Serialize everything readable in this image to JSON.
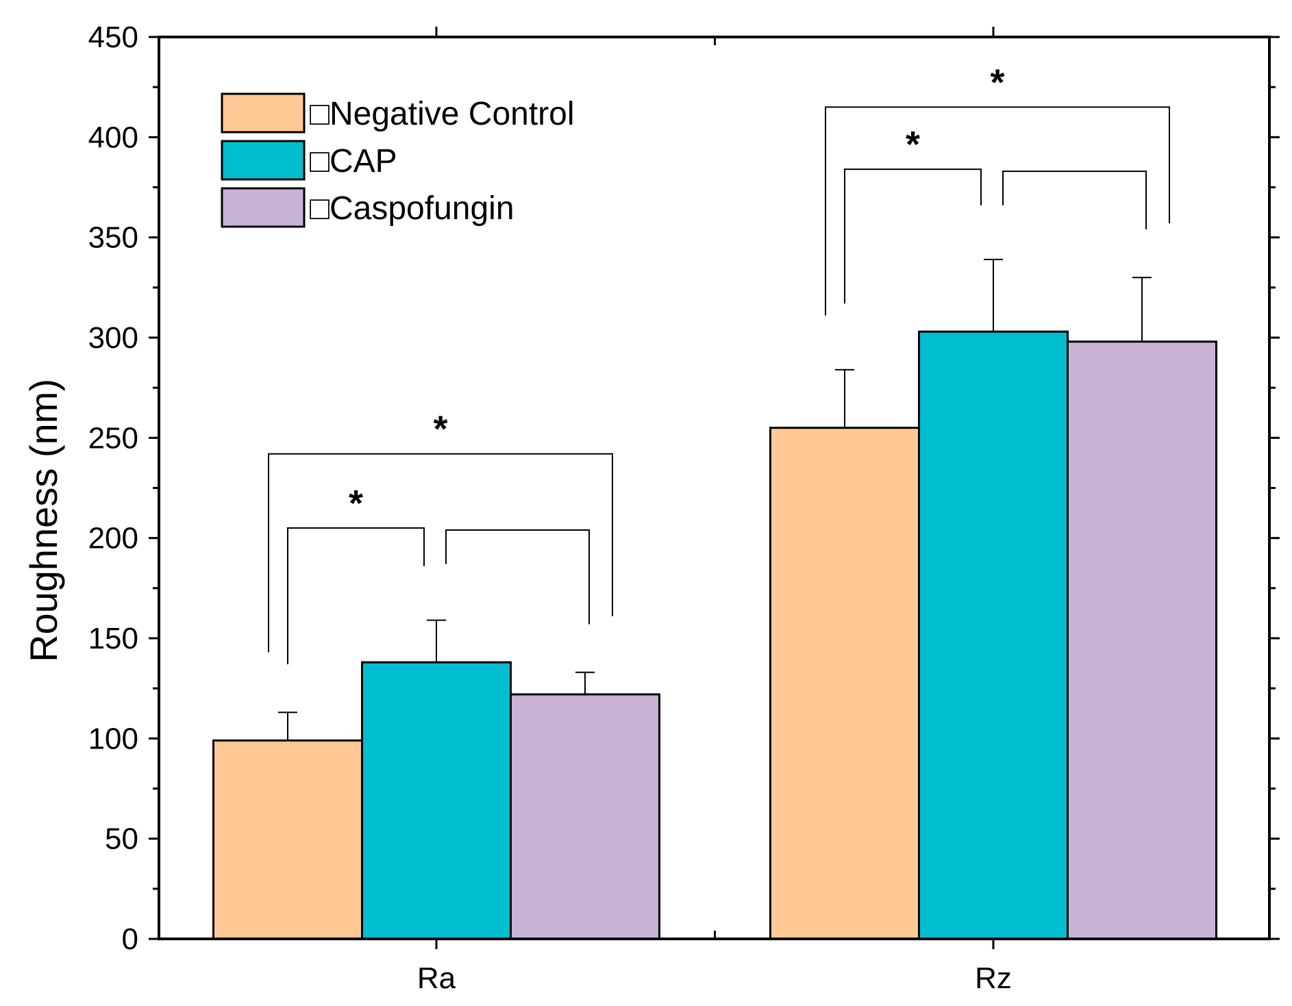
{
  "chart_data": {
    "type": "bar",
    "title": "",
    "xlabel": "",
    "ylabel": "Roughness (nm)",
    "ylim": [
      0,
      450
    ],
    "yticks": [
      0,
      50,
      100,
      150,
      200,
      250,
      300,
      350,
      400,
      450
    ],
    "categories": [
      "Ra",
      "Rz"
    ],
    "series": [
      {
        "name": "Negative Control",
        "legend_label": "□Negative Control",
        "color": "#FFC895",
        "values": [
          99,
          255
        ],
        "errors": [
          14,
          29
        ]
      },
      {
        "name": "CAP",
        "legend_label": "□CAP",
        "color": "#00BED0",
        "values": [
          138,
          303
        ],
        "errors": [
          21,
          36
        ]
      },
      {
        "name": "Caspofungin",
        "legend_label": "□Caspofungin",
        "color": "#C8B2D6",
        "values": [
          122,
          298
        ],
        "errors": [
          11,
          32
        ]
      }
    ],
    "legend_position": "top-left",
    "grid": false,
    "significance": [
      {
        "category": "Ra",
        "from": "Negative Control",
        "to": "CAP",
        "label": "*",
        "bracket_y": 205,
        "left_drop_y": 137,
        "right_drop_y": 186
      },
      {
        "category": "Ra",
        "from": "CAP",
        "to": "Caspofungin",
        "label": "",
        "bracket_y": 204,
        "left_drop_y": 187,
        "right_drop_y": 157
      },
      {
        "category": "Ra",
        "from": "Negative Control",
        "to": "Caspofungin",
        "label": "*",
        "bracket_y": 242,
        "left_drop_y": 143,
        "right_drop_y": 161
      },
      {
        "category": "Rz",
        "from": "Negative Control",
        "to": "CAP",
        "label": "*",
        "bracket_y": 384,
        "left_drop_y": 317,
        "right_drop_y": 366
      },
      {
        "category": "Rz",
        "from": "CAP",
        "to": "Caspofungin",
        "label": "",
        "bracket_y": 383,
        "left_drop_y": 366,
        "right_drop_y": 354
      },
      {
        "category": "Rz",
        "from": "Negative Control",
        "to": "Caspofungin",
        "label": "*",
        "bracket_y": 415,
        "left_drop_y": 311,
        "right_drop_y": 357
      }
    ]
  }
}
